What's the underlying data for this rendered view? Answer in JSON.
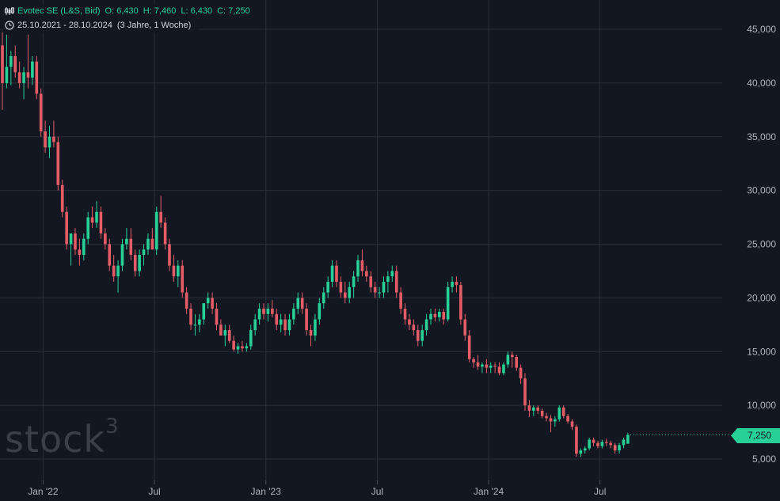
{
  "header": {
    "title": "Evotec SE (L&S, Bid)",
    "open": "O: 6,430",
    "high": "H: 7,460",
    "low": "L: 6,430",
    "close": "C: 7,250",
    "range": "25.10.2021 - 28.10.2024",
    "range_note": "(3 Jahre, 1 Woche)"
  },
  "watermark": {
    "text": "stock",
    "sup": "3"
  },
  "last_price_label": "7,250",
  "colors": {
    "up": "#26d097",
    "down": "#e45d66",
    "grid": "#2a2e39",
    "background": "#131722",
    "axis_text": "#b2b5be",
    "badge": "#26d097"
  },
  "chart_data": {
    "type": "candlestick",
    "title": "Evotec SE (L&S, Bid)",
    "xlabel": "",
    "ylabel": "",
    "ylim": [
      2500,
      47500
    ],
    "yticks": [
      5000,
      10000,
      15000,
      20000,
      25000,
      30000,
      35000,
      40000,
      45000
    ],
    "ytick_labels": [
      "5,000",
      "10,000",
      "15,000",
      "20,000",
      "25,000",
      "30,000",
      "35,000",
      "40,000",
      "45,000"
    ],
    "xticks": [
      {
        "label": "Jan '22",
        "week": 9.5
      },
      {
        "label": "Jul",
        "week": 35.5
      },
      {
        "label": "Jan '23",
        "week": 61.5
      },
      {
        "label": "Jul",
        "week": 87.5
      },
      {
        "label": "Jan '24",
        "week": 113.5
      },
      {
        "label": "Jul",
        "week": 139.5
      }
    ],
    "grid": true,
    "last_price": 7250,
    "weekly_ohlc": [
      [
        43500,
        45000,
        37500,
        40000
      ],
      [
        40000,
        44500,
        39500,
        41500
      ],
      [
        41500,
        43000,
        39800,
        42500
      ],
      [
        42500,
        43500,
        40500,
        41000
      ],
      [
        41000,
        42000,
        39500,
        40000
      ],
      [
        40000,
        41500,
        38500,
        41000
      ],
      [
        41000,
        44500,
        39500,
        40500
      ],
      [
        40500,
        42500,
        39800,
        42000
      ],
      [
        42000,
        42500,
        38500,
        39000
      ],
      [
        39000,
        39500,
        35000,
        35500
      ],
      [
        35500,
        36500,
        33500,
        34000
      ],
      [
        34000,
        36000,
        33000,
        35000
      ],
      [
        35000,
        36500,
        34000,
        34500
      ],
      [
        34500,
        35000,
        30000,
        30500
      ],
      [
        30500,
        31000,
        27500,
        28000
      ],
      [
        28000,
        28500,
        24500,
        25000
      ],
      [
        25000,
        26000,
        23000,
        26000
      ],
      [
        26000,
        26500,
        24000,
        24500
      ],
      [
        24500,
        25500,
        23000,
        24000
      ],
      [
        24000,
        26000,
        23500,
        25500
      ],
      [
        25500,
        28000,
        25000,
        27500
      ],
      [
        27500,
        28500,
        26500,
        27000
      ],
      [
        27000,
        29000,
        26500,
        28000
      ],
      [
        28000,
        28500,
        25500,
        26000
      ],
      [
        26000,
        26500,
        24500,
        25000
      ],
      [
        25000,
        25500,
        22500,
        23000
      ],
      [
        23000,
        24000,
        21500,
        22000
      ],
      [
        22000,
        23500,
        20500,
        23000
      ],
      [
        23000,
        25500,
        22500,
        25000
      ],
      [
        25000,
        26500,
        24500,
        25500
      ],
      [
        25500,
        26500,
        23500,
        24000
      ],
      [
        24000,
        24500,
        22000,
        22500
      ],
      [
        22500,
        24500,
        22000,
        24000
      ],
      [
        24000,
        25000,
        23000,
        24500
      ],
      [
        24500,
        26000,
        24000,
        25500
      ],
      [
        25500,
        26500,
        24500,
        24500
      ],
      [
        24500,
        28500,
        24000,
        28000
      ],
      [
        28000,
        29500,
        26500,
        27000
      ],
      [
        27000,
        27500,
        24500,
        25000
      ],
      [
        25000,
        25500,
        22500,
        23000
      ],
      [
        23000,
        24000,
        21500,
        22000
      ],
      [
        22000,
        23500,
        21000,
        23000
      ],
      [
        23000,
        23500,
        20000,
        20500
      ],
      [
        20500,
        21000,
        18500,
        19000
      ],
      [
        19000,
        19500,
        17000,
        17500
      ],
      [
        17500,
        18500,
        16500,
        17500
      ],
      [
        17500,
        18500,
        16800,
        18000
      ],
      [
        18000,
        19500,
        17500,
        19500
      ],
      [
        19500,
        20500,
        19000,
        20000
      ],
      [
        20000,
        20500,
        18500,
        19000
      ],
      [
        19000,
        19500,
        17000,
        17500
      ],
      [
        17500,
        18000,
        16500,
        16500
      ],
      [
        16500,
        17500,
        15500,
        17000
      ],
      [
        17000,
        17500,
        15800,
        16000
      ],
      [
        16000,
        16500,
        15000,
        15200
      ],
      [
        15200,
        15800,
        14800,
        15500
      ],
      [
        15500,
        16000,
        15000,
        15300
      ],
      [
        15300,
        15800,
        15000,
        15500
      ],
      [
        15500,
        17500,
        15200,
        17000
      ],
      [
        17000,
        18500,
        16500,
        18000
      ],
      [
        18000,
        19500,
        17500,
        19000
      ],
      [
        19000,
        19500,
        18000,
        18500
      ],
      [
        18500,
        19500,
        17800,
        19000
      ],
      [
        19000,
        19800,
        18200,
        18500
      ],
      [
        18500,
        19000,
        17000,
        17500
      ],
      [
        17500,
        18500,
        16800,
        18000
      ],
      [
        18000,
        18500,
        16500,
        17000
      ],
      [
        17000,
        18500,
        16500,
        18000
      ],
      [
        18000,
        19500,
        17500,
        19000
      ],
      [
        19000,
        20500,
        18500,
        20000
      ],
      [
        20000,
        20500,
        18500,
        19000
      ],
      [
        19000,
        19500,
        16500,
        17000
      ],
      [
        17000,
        17500,
        15500,
        16500
      ],
      [
        16500,
        18500,
        16000,
        18000
      ],
      [
        18000,
        20000,
        17500,
        19500
      ],
      [
        19500,
        21000,
        19000,
        20500
      ],
      [
        20500,
        22000,
        20000,
        21500
      ],
      [
        21500,
        23500,
        21000,
        23000
      ],
      [
        23000,
        23500,
        21000,
        21500
      ],
      [
        21500,
        22000,
        20000,
        20500
      ],
      [
        20500,
        21500,
        19500,
        20000
      ],
      [
        20000,
        21500,
        19500,
        21000
      ],
      [
        21000,
        22500,
        20000,
        22000
      ],
      [
        22000,
        24000,
        21500,
        23500
      ],
      [
        23500,
        24500,
        22000,
        22500
      ],
      [
        22500,
        23000,
        21500,
        22000
      ],
      [
        22000,
        22500,
        20500,
        21000
      ],
      [
        21000,
        21500,
        20000,
        20500
      ],
      [
        20500,
        21000,
        20000,
        20500
      ],
      [
        20500,
        22000,
        20000,
        21500
      ],
      [
        21500,
        22500,
        20500,
        22000
      ],
      [
        22000,
        23000,
        21500,
        22500
      ],
      [
        22500,
        23000,
        20000,
        20500
      ],
      [
        20500,
        21000,
        18500,
        19000
      ],
      [
        19000,
        19500,
        17500,
        18000
      ],
      [
        18000,
        18500,
        17000,
        17500
      ],
      [
        17500,
        18000,
        16500,
        17000
      ],
      [
        17000,
        17500,
        15500,
        16000
      ],
      [
        16000,
        17500,
        15500,
        17000
      ],
      [
        17000,
        18500,
        16500,
        18000
      ],
      [
        18000,
        19000,
        17500,
        18500
      ],
      [
        18500,
        19000,
        17800,
        18200
      ],
      [
        18200,
        19000,
        17800,
        18700
      ],
      [
        18700,
        19000,
        17500,
        18000
      ],
      [
        18000,
        21500,
        17800,
        21000
      ],
      [
        21000,
        22000,
        20500,
        21500
      ],
      [
        21500,
        22000,
        20500,
        21200
      ],
      [
        21200,
        21500,
        17500,
        18000
      ],
      [
        18000,
        18500,
        16000,
        16500
      ],
      [
        16500,
        17000,
        14000,
        14300
      ],
      [
        14300,
        14500,
        13500,
        14000
      ],
      [
        14000,
        14700,
        13300,
        13600
      ],
      [
        13600,
        14000,
        13000,
        13800
      ],
      [
        13800,
        14300,
        13000,
        13500
      ],
      [
        13500,
        14000,
        13000,
        13700
      ],
      [
        13700,
        14000,
        13000,
        13600
      ],
      [
        13600,
        14000,
        12800,
        13000
      ],
      [
        13000,
        14000,
        12800,
        13800
      ],
      [
        13800,
        15000,
        13500,
        14700
      ],
      [
        14700,
        15000,
        13500,
        14500
      ],
      [
        14500,
        14700,
        13200,
        13500
      ],
      [
        13500,
        13800,
        12000,
        12500
      ],
      [
        12500,
        13000,
        9500,
        10000
      ],
      [
        10000,
        10500,
        8900,
        9500
      ],
      [
        9500,
        10000,
        9000,
        9800
      ],
      [
        9800,
        10000,
        9200,
        9500
      ],
      [
        9500,
        9700,
        8800,
        9000
      ],
      [
        9000,
        9300,
        8500,
        8800
      ],
      [
        8800,
        9100,
        7500,
        8500
      ],
      [
        8500,
        9000,
        8000,
        8700
      ],
      [
        8700,
        10000,
        8500,
        9800
      ],
      [
        9800,
        10000,
        8800,
        9000
      ],
      [
        9000,
        9200,
        8300,
        8500
      ],
      [
        8500,
        8700,
        7700,
        8000
      ],
      [
        8000,
        8200,
        5200,
        5500
      ],
      [
        5500,
        6000,
        5200,
        5800
      ],
      [
        5800,
        6200,
        5500,
        6000
      ],
      [
        6000,
        7000,
        5800,
        6800
      ],
      [
        6800,
        7000,
        6200,
        6500
      ],
      [
        6500,
        6700,
        6000,
        6200
      ],
      [
        6200,
        6800,
        6000,
        6600
      ],
      [
        6600,
        6900,
        6200,
        6500
      ],
      [
        6500,
        6700,
        6000,
        6300
      ],
      [
        6300,
        6500,
        5500,
        5800
      ],
      [
        5800,
        6500,
        5500,
        6300
      ],
      [
        6300,
        7000,
        6000,
        6800
      ],
      [
        6430,
        7460,
        6430,
        7250
      ]
    ]
  }
}
